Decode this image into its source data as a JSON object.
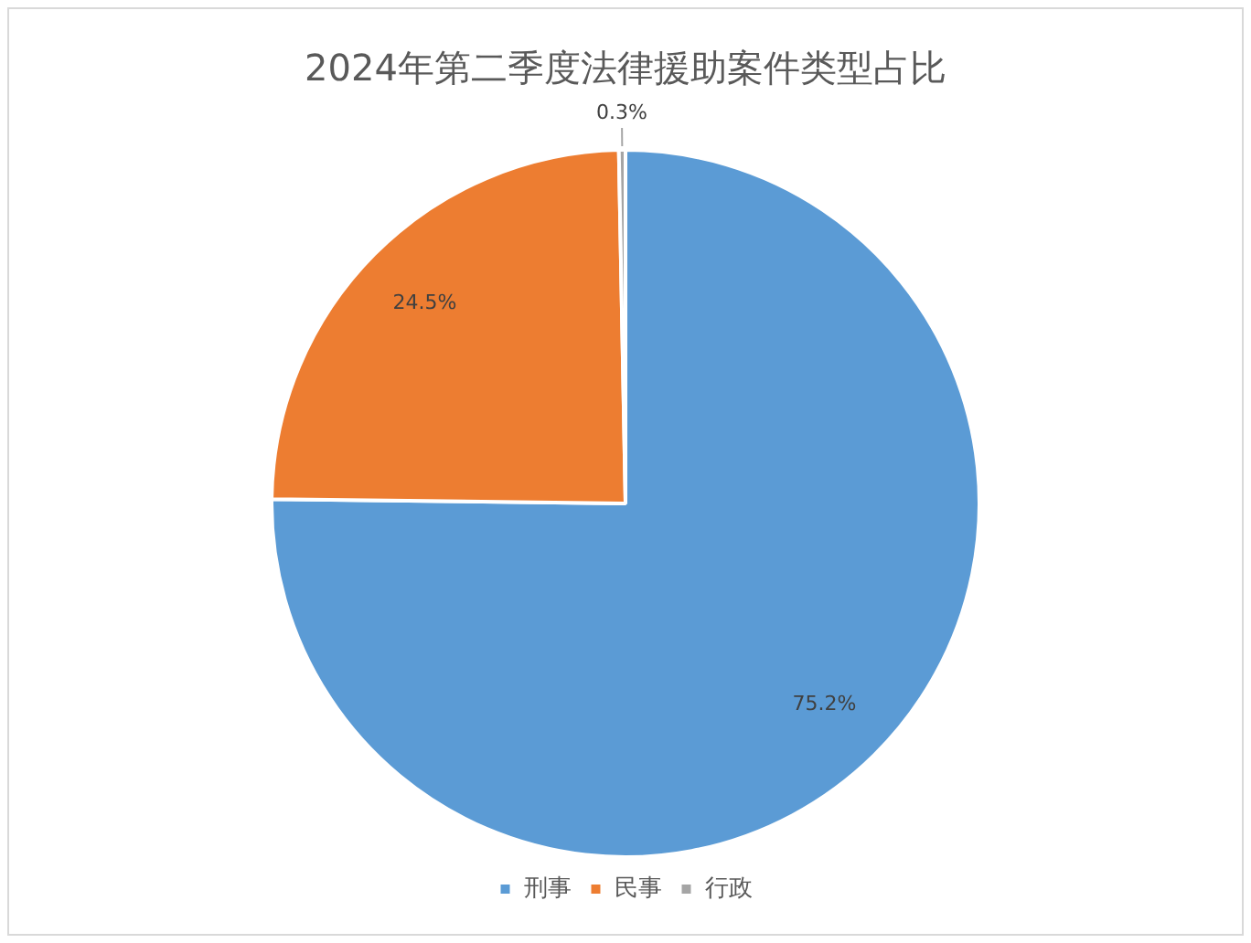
{
  "chart_data": {
    "type": "pie",
    "title": "2024年第二季度法律援助案件类型占比",
    "categories": [
      "刑事",
      "民事",
      "行政"
    ],
    "values": [
      75.2,
      24.5,
      0.3
    ],
    "colors": [
      "#5b9bd5",
      "#ed7d31",
      "#a5a5a5"
    ],
    "value_labels": [
      "75.2%",
      "24.5%",
      "0.3%"
    ],
    "legend": "bottom"
  }
}
